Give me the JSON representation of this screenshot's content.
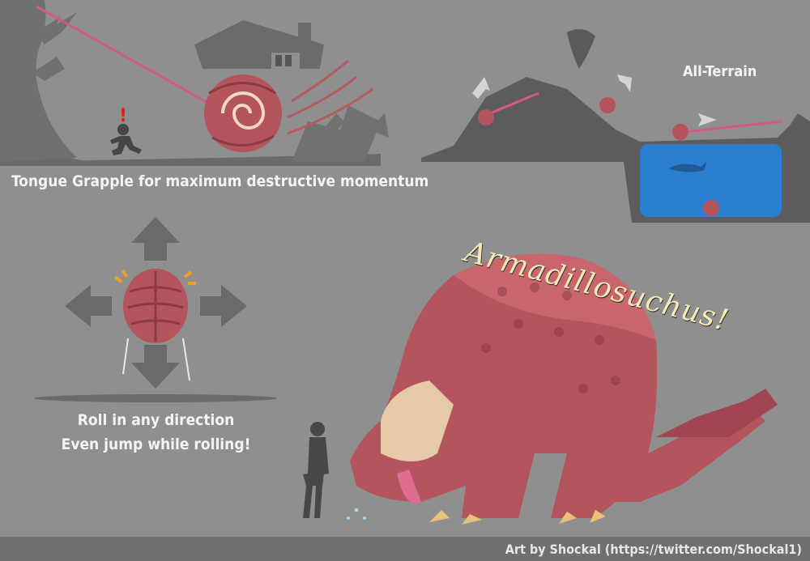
{
  "captions": {
    "tongue_grapple": "Tongue Grapple for maximum destructive momentum",
    "all_terrain": "All-Terrain",
    "roll_line1": "Roll in any direction",
    "roll_line2": "Even jump while rolling!"
  },
  "title": "Armadillosuchus!",
  "alert_mark": "!",
  "footer": {
    "credit": "Art by Shockal (https://twitter.com/Shockal1)"
  },
  "colors": {
    "background": "#8f8f8f",
    "creature_red": "#b4545c",
    "tongue_pink": "#e06a90",
    "water_blue": "#2a7fd0",
    "caption_text": "#f4f4f4",
    "title_yellow": "#f6e9b8"
  },
  "icons": [
    "arrow-up-icon",
    "arrow-down-icon",
    "arrow-left-icon",
    "arrow-right-icon",
    "house-icon",
    "shark-icon",
    "human-silhouette-icon",
    "tree-icon"
  ]
}
